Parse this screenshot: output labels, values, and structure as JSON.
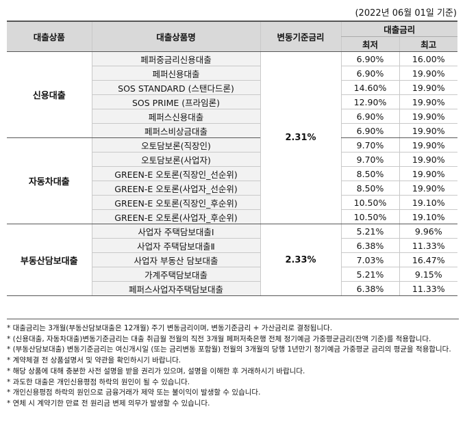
{
  "date_note": "(2022년 06월 01일 기준)",
  "headers": {
    "category": "대출상품",
    "product": "대출상품명",
    "base_rate": "변동기준금리",
    "rate": "대출금리",
    "min": "최저",
    "max": "최고"
  },
  "groups": [
    {
      "category": "신용대출",
      "rows": [
        {
          "name": "페퍼중금리신용대출",
          "min": "6.90%",
          "max": "16.00%"
        },
        {
          "name": "페퍼신용대출",
          "min": "6.90%",
          "max": "19.90%"
        },
        {
          "name": "SOS STANDARD (스탠다드론)",
          "min": "14.60%",
          "max": "19.90%"
        },
        {
          "name": "SOS PRIME (프라임론)",
          "min": "12.90%",
          "max": "19.90%"
        },
        {
          "name": "페퍼스신용대출",
          "min": "6.90%",
          "max": "19.90%"
        },
        {
          "name": "페퍼스비상금대출",
          "min": "6.90%",
          "max": "19.90%"
        }
      ]
    },
    {
      "category": "자동차대출",
      "rows": [
        {
          "name": "오토담보론(직장인)",
          "min": "9.70%",
          "max": "19.90%"
        },
        {
          "name": "오토담보론(사업자)",
          "min": "9.70%",
          "max": "19.90%"
        },
        {
          "name": "GREEN-E 오토론(직장인_선순위)",
          "min": "8.50%",
          "max": "19.90%"
        },
        {
          "name": "GREEN-E 오토론(사업자_선순위)",
          "min": "8.50%",
          "max": "19.90%"
        },
        {
          "name": "GREEN-E 오토론(직장인_후순위)",
          "min": "10.50%",
          "max": "19.10%"
        },
        {
          "name": "GREEN-E 오토론(사업자_후순위)",
          "min": "10.50%",
          "max": "19.10%"
        }
      ]
    },
    {
      "category": "부동산담보대출",
      "rows": [
        {
          "name": "사업자 주택담보대출Ⅰ",
          "min": "5.21%",
          "max": "9.96%"
        },
        {
          "name": "사업자 주택담보대출Ⅱ",
          "min": "6.38%",
          "max": "11.33%"
        },
        {
          "name": "사업자 부동산 담보대출",
          "min": "7.03%",
          "max": "16.47%"
        },
        {
          "name": "가계주택담보대출",
          "min": "5.21%",
          "max": "9.15%"
        },
        {
          "name": "페퍼스사업자주택담보대출",
          "min": "6.38%",
          "max": "11.33%"
        }
      ]
    }
  ],
  "base_rates": {
    "credit_auto": "2.31%",
    "real_estate": "2.33%"
  },
  "notes": [
    "* 대출금리는 3개월(부동산담보대출은 12개월) 주기 변동금리이며, 변동기준금리 + 가산금리로 결정됩니다.",
    "* (신용대출, 자동차대출)변동기준금리는 대출 취급월 전월의 직전 3개월 페퍼저축은행 전체 정기예금 가중평균금리(잔액 기준)를 적용합니다.",
    "* (부동산담보대출) 변동기준금리는 여신개시일 (또는 금리변동 포함월) 전월의 3개월의 당행 1년만기 정기예금 가중평균 금리의 평균을 적용합니다.",
    "* 계약체결 전 상품설명서 및 약관을 확인하시기 바랍니다.",
    "* 해당 상품에 대해 충분한 사전 설명을 받을 권리가 있으며, 설명을 이해한 후 거래하시기 바랍니다.",
    "* 과도한 대출은 개인신용평점 하락의 원인이 될 수 있습니다.",
    "* 개인신용평점 하락의 원인으로 금융거래가 제약 또는 불이익이 발생할 수 있습니다.",
    "* 연체 시 계약기한 만료 전 원리금 변제 의무가 발생할 수 있습니다."
  ]
}
